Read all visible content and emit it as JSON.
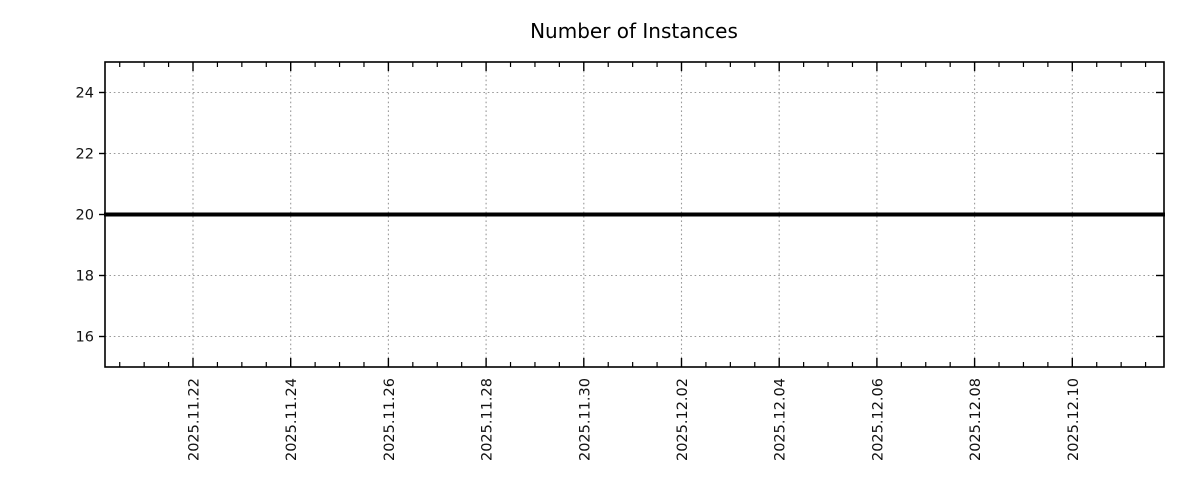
{
  "chart_data": {
    "type": "line",
    "title": "Number of Instances",
    "x": [
      "2025.11.22",
      "2025.11.24",
      "2025.11.26",
      "2025.11.28",
      "2025.11.30",
      "2025.12.02",
      "2025.12.04",
      "2025.12.06",
      "2025.12.08",
      "2025.12.10"
    ],
    "series": [
      {
        "name": "Number of Instances",
        "values": [
          20,
          20,
          20,
          20,
          20,
          20,
          20,
          20,
          20,
          20
        ]
      }
    ],
    "ylim": [
      15,
      25
    ],
    "yticks": [
      16,
      18,
      20,
      22,
      24
    ],
    "xlabel": "",
    "ylabel": "",
    "grid": "dotted gridlines on both axes at major ticks",
    "legend_position": "none",
    "x_minor_ticks_per_interval": 4,
    "x_tick_label_rotation_deg": 90,
    "annotations": "constant horizontal thick black line at y=20 spanning the entire plot width"
  },
  "colors": {
    "background": "#ffffff",
    "line": "#000000",
    "grid": "#999999",
    "axis": "#000000",
    "title_text": "#1f1f1f",
    "tick_text": "#111111"
  }
}
